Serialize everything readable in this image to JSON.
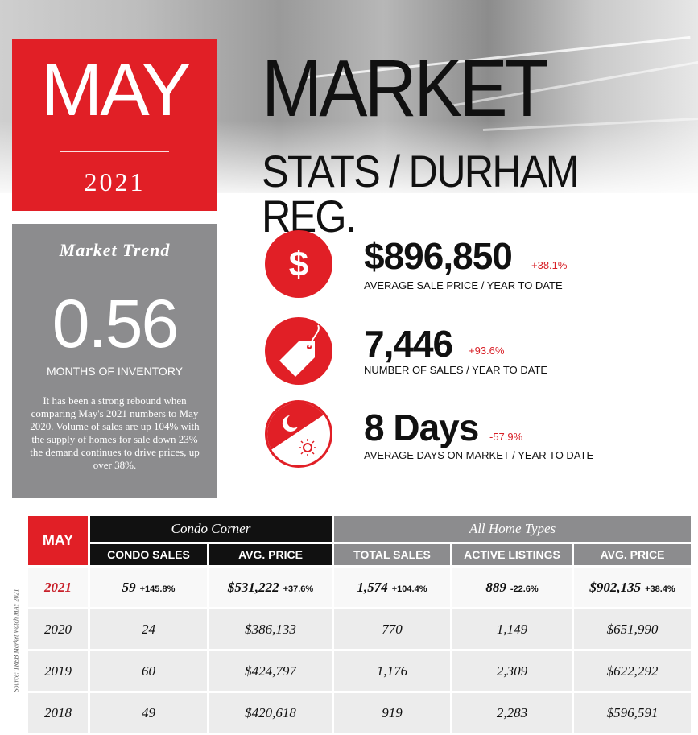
{
  "header": {
    "month": "MAY",
    "year": "2021",
    "title_line1": "MARKET",
    "title_line2": "STATS / DURHAM REG."
  },
  "trend": {
    "heading": "Market Trend",
    "value": "0.56",
    "label": "MONTHS OF INVENTORY",
    "description": "It has been a strong rebound when comparing May's 2021 numbers to May 2020. Volume of sales are up 104% with the supply of homes for sale down 23% the demand continues to drive prices, up over 38%."
  },
  "stats": [
    {
      "icon": "dollar-icon",
      "value": "$896,850",
      "change": "+38.1%",
      "label": "AVERAGE SALE PRICE",
      "sublabel": "/ YEAR TO DATE"
    },
    {
      "icon": "price-tag-icon",
      "value": "7,446",
      "change": "+93.6%",
      "label": "NUMBER OF SALES",
      "sublabel": "/ YEAR TO DATE"
    },
    {
      "icon": "day-night-icon",
      "value": "8 Days",
      "change": "-57.9%",
      "label": "AVERAGE DAYS ON MARKET",
      "sublabel": "/ YEAR TO DATE"
    }
  ],
  "table": {
    "corner": "MAY",
    "group_condo": "Condo Corner",
    "group_all": "All Home Types",
    "columns": [
      "CONDO SALES",
      "AVG. PRICE",
      "TOTAL SALES",
      "ACTIVE LISTINGS",
      "AVG. PRICE"
    ],
    "rows": [
      {
        "year": "2021",
        "cells": [
          {
            "value": "59",
            "change": "+145.8%"
          },
          {
            "value": "$531,222",
            "change": "+37.6%"
          },
          {
            "value": "1,574",
            "change": "+104.4%"
          },
          {
            "value": "889",
            "change": "-22.6%"
          },
          {
            "value": "$902,135",
            "change": "+38.4%"
          }
        ]
      },
      {
        "year": "2020",
        "cells": [
          {
            "value": "24",
            "change": ""
          },
          {
            "value": "$386,133",
            "change": ""
          },
          {
            "value": "770",
            "change": ""
          },
          {
            "value": "1,149",
            "change": ""
          },
          {
            "value": "$651,990",
            "change": ""
          }
        ]
      },
      {
        "year": "2019",
        "cells": [
          {
            "value": "60",
            "change": ""
          },
          {
            "value": "$424,797",
            "change": ""
          },
          {
            "value": "1,176",
            "change": ""
          },
          {
            "value": "2,309",
            "change": ""
          },
          {
            "value": "$622,292",
            "change": ""
          }
        ]
      },
      {
        "year": "2018",
        "cells": [
          {
            "value": "49",
            "change": ""
          },
          {
            "value": "$420,618",
            "change": ""
          },
          {
            "value": "919",
            "change": ""
          },
          {
            "value": "2,283",
            "change": ""
          },
          {
            "value": "$596,591",
            "change": ""
          }
        ]
      }
    ]
  },
  "source": "Source: TREB Market Watch MAY 2021",
  "colors": {
    "accent": "#e11f26",
    "gray_panel": "#8c8c8e",
    "dark": "#111111"
  }
}
